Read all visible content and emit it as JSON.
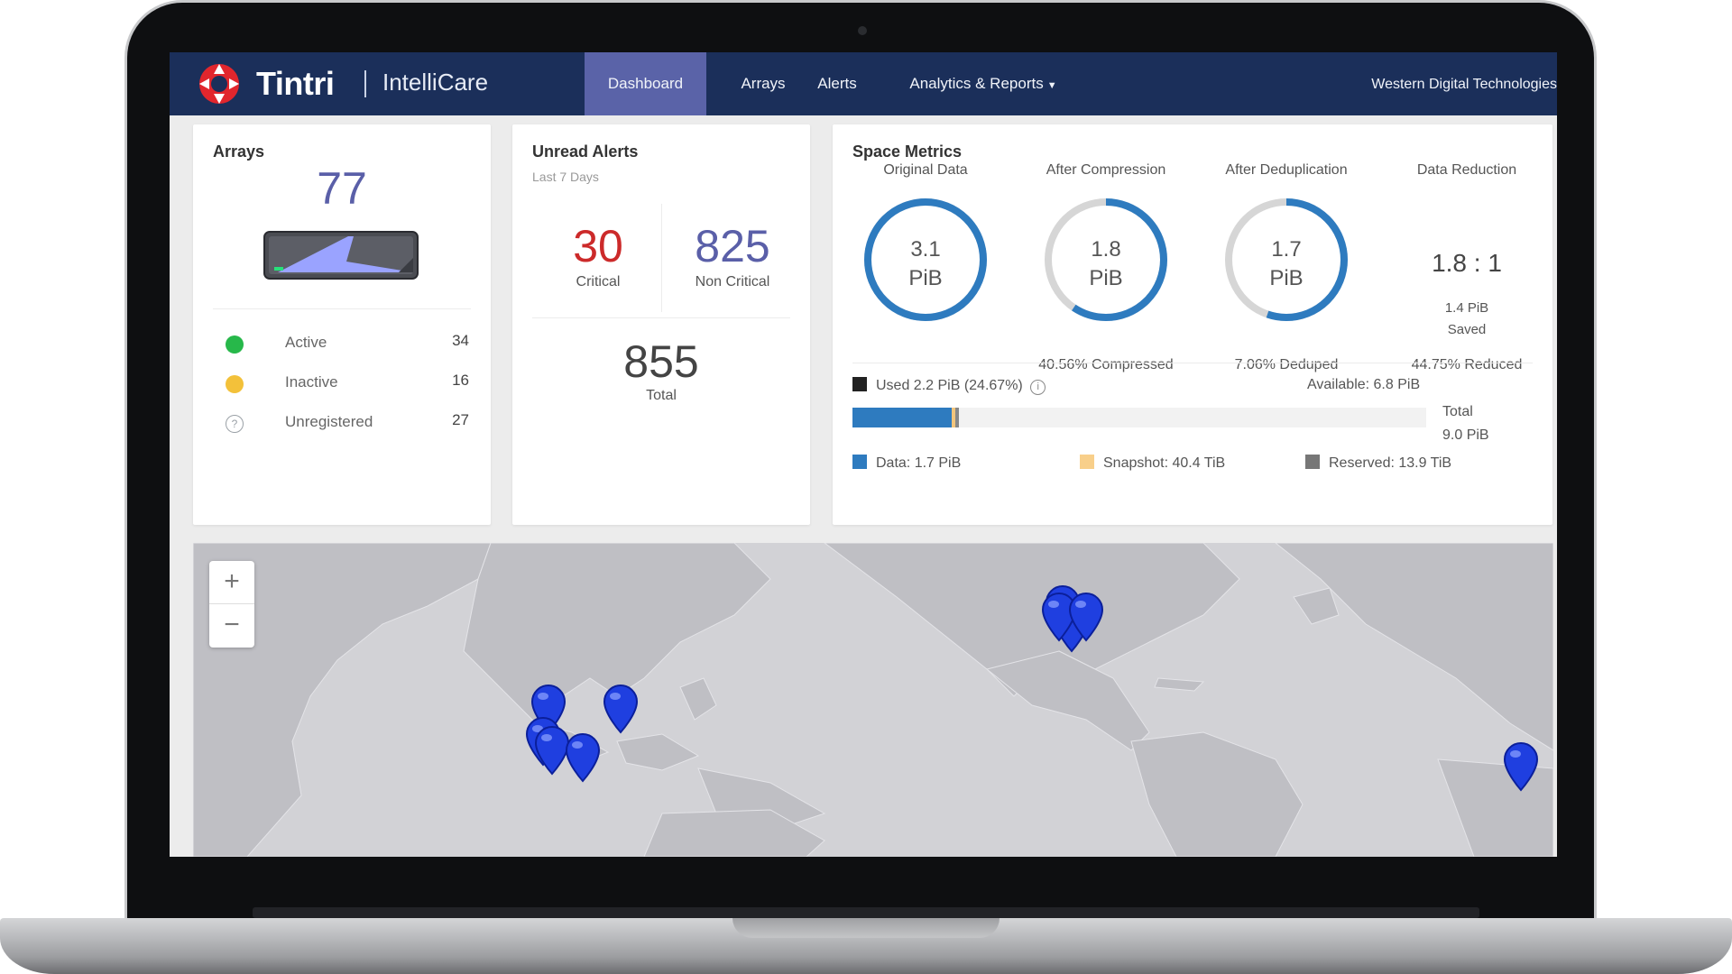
{
  "nav": {
    "brand": "Tintri",
    "product": "IntelliCare",
    "items": [
      {
        "label": "Dashboard",
        "active": true
      },
      {
        "label": "Arrays"
      },
      {
        "label": "Alerts"
      },
      {
        "label": "Analytics & Reports"
      }
    ],
    "tenant": "Western Digital Technologies"
  },
  "arrays": {
    "title": "Arrays",
    "count": "77",
    "statuses": [
      {
        "label": "Active",
        "count": "34"
      },
      {
        "label": "Inactive",
        "count": "16"
      },
      {
        "label": "Unregistered",
        "count": "27"
      }
    ]
  },
  "alerts": {
    "title": "Unread Alerts",
    "subtitle": "Last 7 Days",
    "critical": {
      "value": "30",
      "label": "Critical"
    },
    "non_critical": {
      "value": "825",
      "label": "Non Critical"
    },
    "total": {
      "value": "855",
      "label": "Total"
    }
  },
  "space": {
    "title": "Space Metrics",
    "rings": [
      {
        "heading": "Original Data",
        "value": "3.1",
        "unit": "PiB",
        "fraction": 1.0,
        "footer": ""
      },
      {
        "heading": "After Compression",
        "value": "1.8",
        "unit": "PiB",
        "fraction": 0.594,
        "footer": "40.56% Compressed"
      },
      {
        "heading": "After Deduplication",
        "value": "1.7",
        "unit": "PiB",
        "fraction": 0.553,
        "footer": "7.06% Deduped"
      }
    ],
    "reduction": {
      "heading": "Data Reduction",
      "ratio": "1.8 : 1",
      "saved_value": "1.4 PiB",
      "saved_label": "Saved",
      "footer": "44.75% Reduced"
    },
    "used_label": "Used 2.2 PiB (24.67%)",
    "available_label": "Available: 6.8 PiB",
    "total_label": "Total",
    "total_value": "9.0 PiB",
    "used_fraction": 0.2467,
    "legend": {
      "data": "Data: 1.7 PiB",
      "snapshot": "Snapshot: 40.4 TiB",
      "reserved": "Reserved: 13.9 TiB"
    }
  },
  "map": {
    "zoom_in": "+",
    "zoom_out": "−"
  },
  "colors": {
    "nav_bg": "#1b2f5a",
    "nav_active": "#5a63a8",
    "accent_purple": "#5a5fa8",
    "critical_red": "#cc2a2a",
    "ring_blue": "#2e7bbf",
    "active_green": "#27b84a",
    "inactive_yellow": "#f3c13a",
    "pin_blue": "#1f3fe0"
  }
}
